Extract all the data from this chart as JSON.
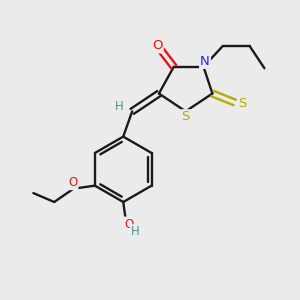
{
  "bg_color": "#ebebeb",
  "bond_color": "#1a1a1a",
  "atom_colors": {
    "O": "#ee1111",
    "N": "#2222ee",
    "S": "#bbaa00",
    "H": "#4a9090",
    "C": "#1a1a1a"
  },
  "figsize": [
    3.0,
    3.0
  ],
  "dpi": 100
}
